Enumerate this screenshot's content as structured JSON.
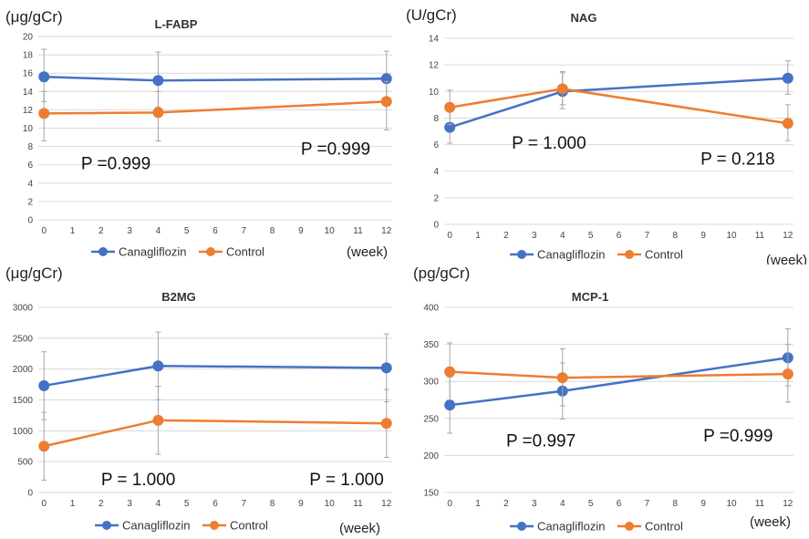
{
  "colors": {
    "canagliflozin": "#4472C4",
    "control": "#ED7D31",
    "grid": "#d9d9d9",
    "axis": "#bfbfbf",
    "error": "#a6a6a6"
  },
  "chart_data": [
    {
      "type": "line",
      "title": "L-FABP",
      "ylabel": "(μg/gCr)",
      "xlabel": "(week)",
      "x": [
        0,
        4,
        12
      ],
      "xticks": [
        0,
        1,
        2,
        3,
        4,
        5,
        6,
        7,
        8,
        9,
        10,
        11,
        12
      ],
      "xlim": [
        -0.2,
        12.2
      ],
      "ylim": [
        0,
        20
      ],
      "yticks": [
        0,
        2,
        4,
        6,
        8,
        10,
        12,
        14,
        16,
        18,
        20
      ],
      "grid": "horizontal",
      "legend_position": "bottom",
      "series": [
        {
          "name": "Canagliflozin",
          "color": "#4472C4",
          "values": [
            15.6,
            15.2,
            15.4
          ],
          "err_low": [
            12.9,
            12.3,
            12.7
          ],
          "err_high": [
            18.6,
            18.3,
            18.4
          ]
        },
        {
          "name": "Control",
          "color": "#ED7D31",
          "values": [
            11.6,
            11.7,
            12.9
          ],
          "err_low": [
            8.6,
            8.6,
            9.8
          ],
          "err_high": [
            14.0,
            14.0,
            15.1
          ]
        }
      ],
      "annotations": [
        {
          "text": "P =0.999",
          "x": 1.3,
          "y": 5.5
        },
        {
          "text": "P =0.999",
          "x": 9.0,
          "y": 7.1
        }
      ]
    },
    {
      "type": "line",
      "title": "NAG",
      "ylabel": "(U/gCr)",
      "xlabel": "(week)",
      "x": [
        0,
        4,
        12
      ],
      "xticks": [
        0,
        1,
        2,
        3,
        4,
        5,
        6,
        7,
        8,
        9,
        10,
        11,
        12
      ],
      "xlim": [
        -0.2,
        12.2
      ],
      "ylim": [
        0,
        14
      ],
      "yticks": [
        0,
        2,
        4,
        6,
        8,
        10,
        12,
        14
      ],
      "grid": "horizontal",
      "legend_position": "bottom",
      "series": [
        {
          "name": "Canagliflozin",
          "color": "#4472C4",
          "values": [
            7.3,
            10.0,
            11.0
          ],
          "err_low": [
            6.1,
            8.7,
            9.8
          ],
          "err_high": [
            8.6,
            11.4,
            12.3
          ]
        },
        {
          "name": "Control",
          "color": "#ED7D31",
          "values": [
            8.8,
            10.2,
            7.6
          ],
          "err_low": [
            7.5,
            9.0,
            6.3
          ],
          "err_high": [
            10.1,
            11.5,
            9.0
          ]
        }
      ],
      "annotations": [
        {
          "text": "P = 1.000",
          "x": 2.2,
          "y": 5.7
        },
        {
          "text": "P = 0.218",
          "x": 8.9,
          "y": 4.5
        }
      ]
    },
    {
      "type": "line",
      "title": "B2MG",
      "ylabel": "(μg/gCr)",
      "xlabel": "(week)",
      "x": [
        0,
        4,
        12
      ],
      "xticks": [
        0,
        1,
        2,
        3,
        4,
        5,
        6,
        7,
        8,
        9,
        10,
        11,
        12
      ],
      "xlim": [
        -0.2,
        12.2
      ],
      "ylim": [
        0,
        3000
      ],
      "yticks": [
        0,
        500,
        1000,
        1500,
        2000,
        2500,
        3000
      ],
      "grid": "horizontal",
      "legend_position": "bottom",
      "series": [
        {
          "name": "Canagliflozin",
          "color": "#4472C4",
          "values": [
            1730,
            2050,
            2020
          ],
          "err_low": [
            1180,
            1500,
            1470
          ],
          "err_high": [
            2280,
            2600,
            2570
          ]
        },
        {
          "name": "Control",
          "color": "#ED7D31",
          "values": [
            750,
            1170,
            1120
          ],
          "err_low": [
            200,
            620,
            570
          ],
          "err_high": [
            1300,
            1720,
            1670
          ]
        }
      ],
      "annotations": [
        {
          "text": "P = 1.000",
          "x": 2.0,
          "y": 120
        },
        {
          "text": "P = 1.000",
          "x": 9.3,
          "y": 120
        }
      ]
    },
    {
      "type": "line",
      "title": "MCP-1",
      "ylabel": "(pg/gCr)",
      "xlabel": "(week)",
      "x": [
        0,
        4,
        12
      ],
      "xticks": [
        0,
        1,
        2,
        3,
        4,
        5,
        6,
        7,
        8,
        9,
        10,
        11,
        12
      ],
      "xlim": [
        -0.2,
        12.2
      ],
      "ylim": [
        150,
        400
      ],
      "yticks": [
        150,
        200,
        250,
        300,
        350,
        400
      ],
      "grid": "horizontal",
      "legend_position": "bottom",
      "series": [
        {
          "name": "Canagliflozin",
          "color": "#4472C4",
          "values": [
            268,
            287,
            332
          ],
          "err_low": [
            230,
            249,
            294
          ],
          "err_high": [
            306,
            325,
            371
          ]
        },
        {
          "name": "Control",
          "color": "#ED7D31",
          "values": [
            313,
            305,
            310
          ],
          "err_low": [
            275,
            267,
            272
          ],
          "err_high": [
            352,
            344,
            350
          ]
        }
      ],
      "annotations": [
        {
          "text": "P =0.997",
          "x": 2.0,
          "y": 212
        },
        {
          "text": "P =0.999",
          "x": 9.0,
          "y": 219
        }
      ]
    }
  ]
}
